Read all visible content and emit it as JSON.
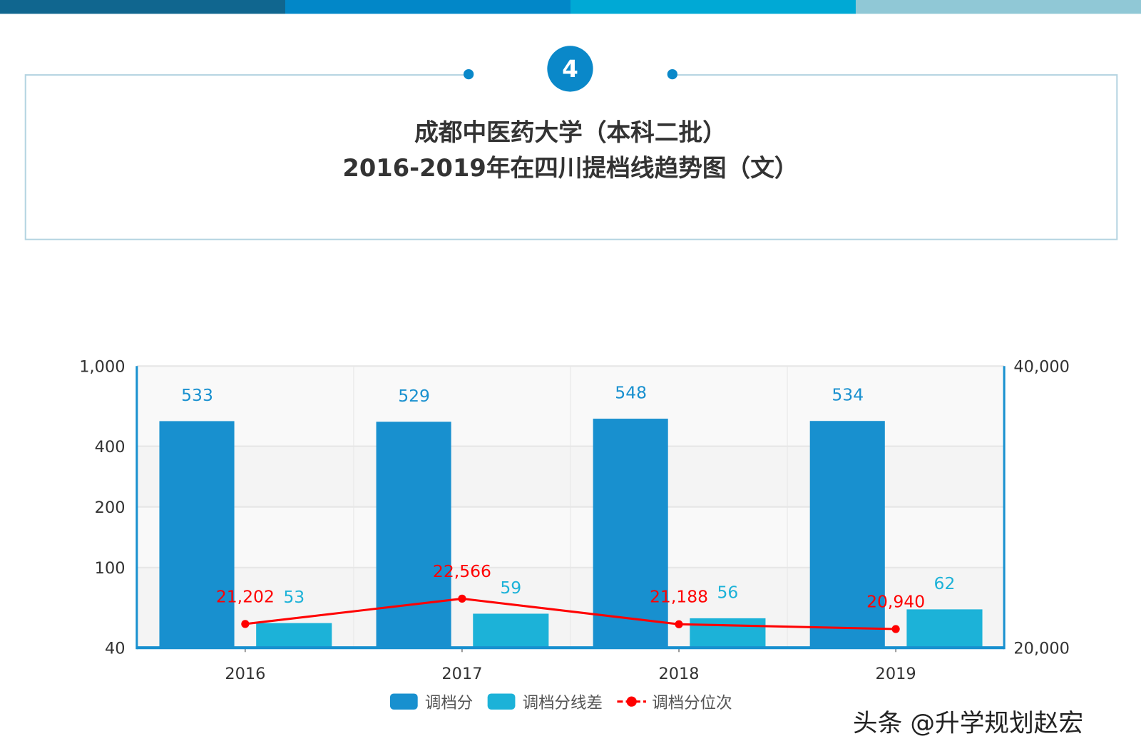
{
  "header": {
    "bar_colors": [
      "#10668f",
      "#0287c8",
      "#00a9d5",
      "#90c8d6"
    ],
    "badge_number": "4",
    "title_line1": "成都中医药大学（本科二批）",
    "title_line2": "2016-2019年在四川提档线趋势图（文）"
  },
  "watermark": "头条 @升学规划赵宏",
  "chart_data": {
    "type": "bar",
    "categories": [
      "2016",
      "2017",
      "2018",
      "2019"
    ],
    "y_left": {
      "scale": "log",
      "range": [
        40,
        1000
      ],
      "ticks": [
        "40",
        "100",
        "200",
        "400",
        "1,000"
      ],
      "tick_values": [
        40,
        100,
        200,
        400,
        1000
      ]
    },
    "y_right": {
      "scale": "log",
      "range": [
        20000,
        40000
      ],
      "ticks": [
        "20,000",
        "40,000"
      ],
      "tick_values": [
        20000,
        40000
      ]
    },
    "grid": true,
    "legend_placement": "bottom",
    "series": [
      {
        "name": "调档分",
        "type": "bar",
        "axis": "left",
        "color": "#1890cf",
        "values": [
          533,
          529,
          548,
          534
        ],
        "labels": [
          "533",
          "529",
          "548",
          "534"
        ]
      },
      {
        "name": "调档分线差",
        "type": "bar",
        "axis": "left",
        "color": "#1cb2d8",
        "values": [
          53,
          59,
          56,
          62
        ],
        "labels": [
          "53",
          "59",
          "56",
          "62"
        ]
      },
      {
        "name": "调档分位次",
        "type": "line",
        "axis": "right",
        "color": "#ff0000",
        "values": [
          21202,
          22566,
          21188,
          20940
        ],
        "labels": [
          "21,202",
          "22,566",
          "21,188",
          "20,940"
        ]
      }
    ]
  }
}
